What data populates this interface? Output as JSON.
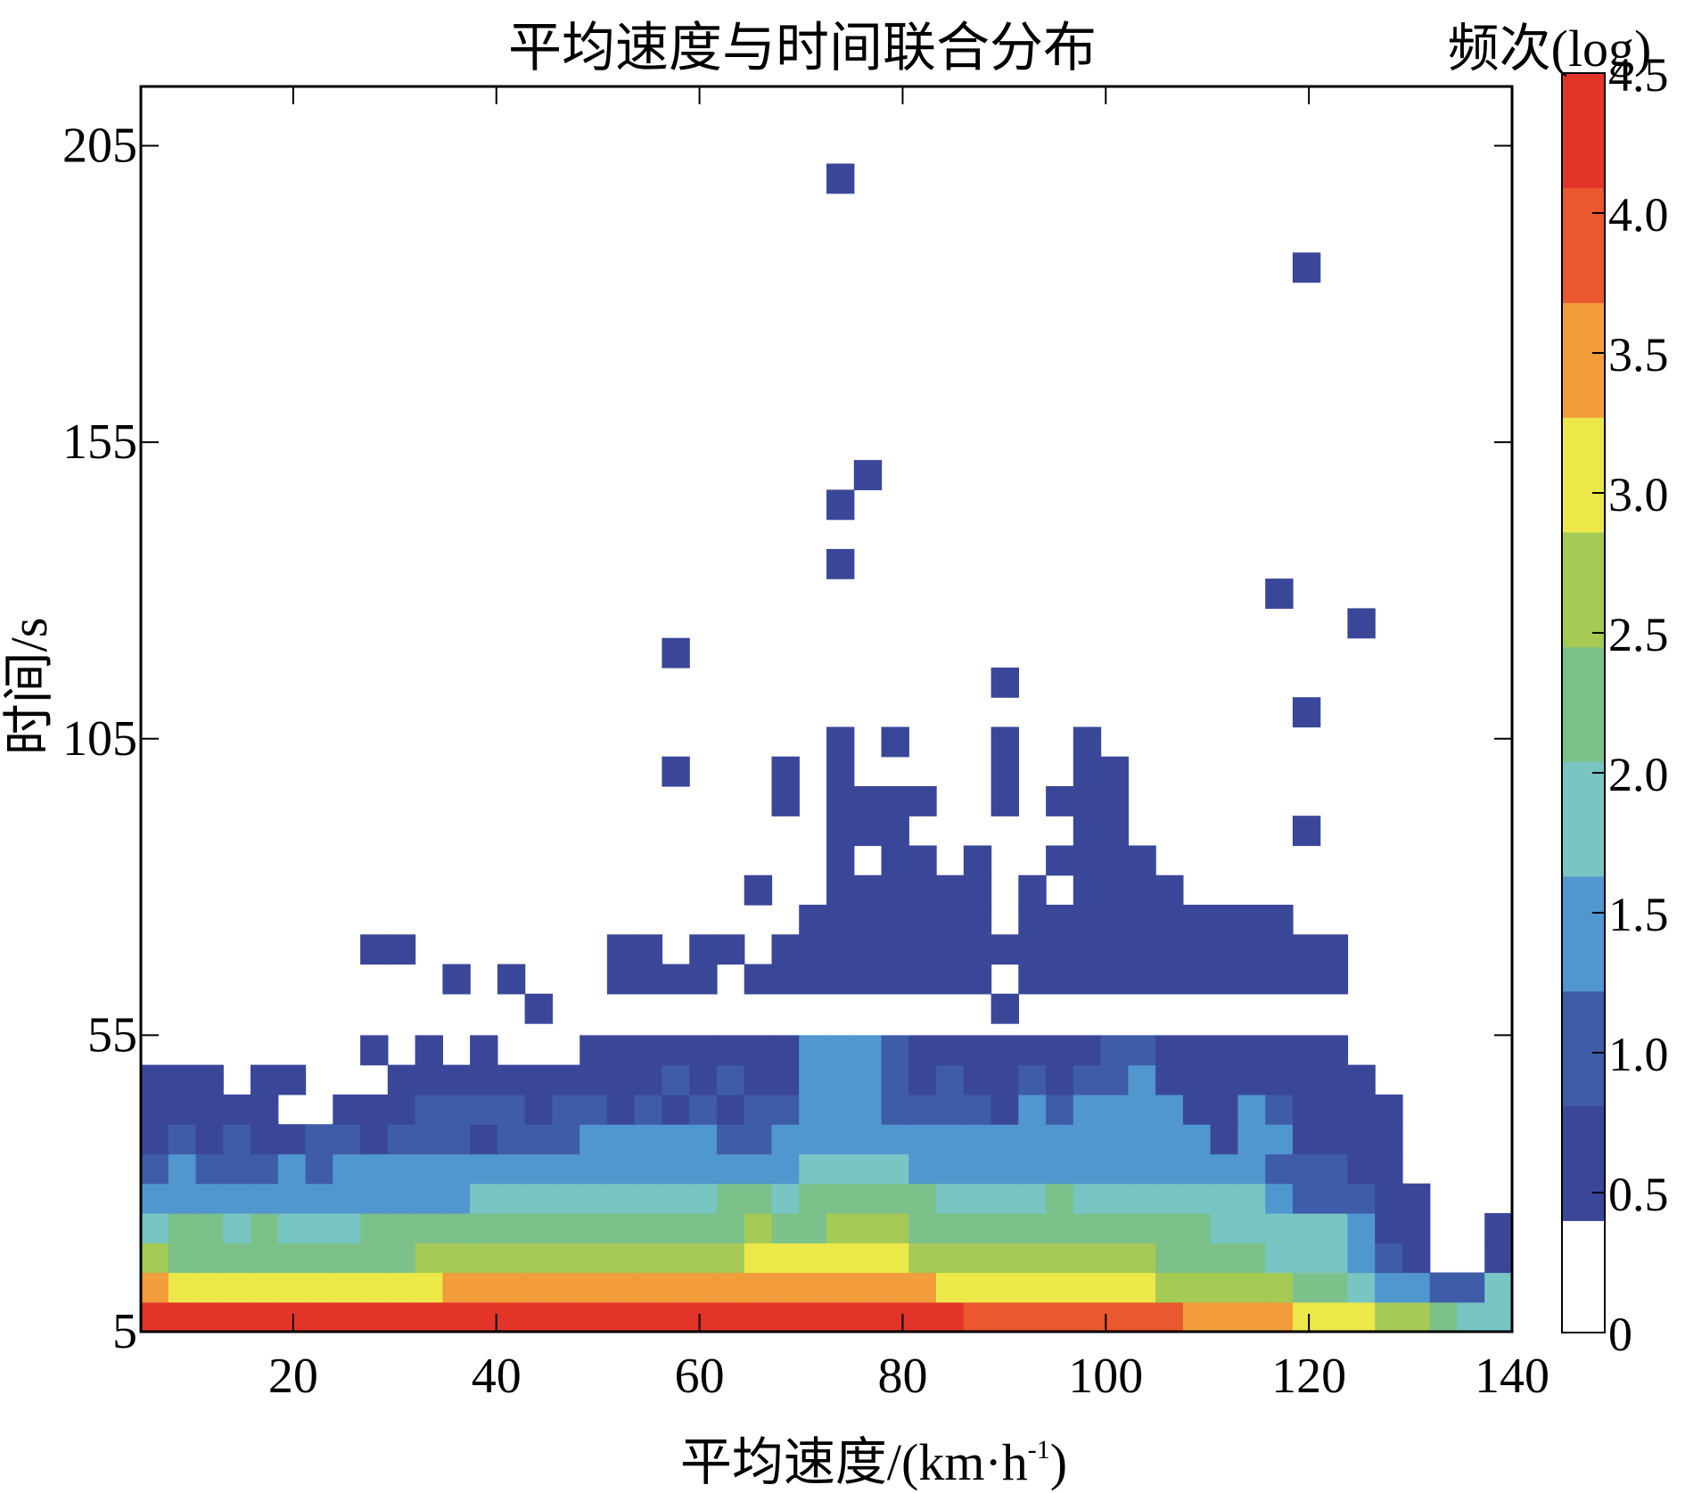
{
  "chart_data": {
    "type": "heatmap",
    "title": "平均速度与时间联合分布",
    "xlabel_main": "平均速度/(km·h",
    "xlabel_sup": "-1",
    "xlabel_close": ")",
    "ylabel": "时间/s",
    "xlim": [
      5,
      140
    ],
    "ylim": [
      5,
      215
    ],
    "x_ticks": [
      20,
      40,
      60,
      80,
      100,
      120,
      140
    ],
    "x_tick_labels": [
      "20",
      "40",
      "60",
      "80",
      "100",
      "120",
      "140"
    ],
    "y_ticks": [
      5,
      55,
      105,
      155,
      205
    ],
    "y_tick_labels": [
      "5",
      "55",
      "105",
      "155",
      "205"
    ],
    "colorbar": {
      "label": "频次(log)",
      "range": [
        0,
        4.5
      ],
      "tick_values": [
        0,
        0.5,
        1.0,
        1.5,
        2.0,
        2.5,
        3.0,
        3.5,
        4.0,
        4.5
      ],
      "tick_labels": [
        "0",
        "0.5",
        "1.0",
        "1.5",
        "2.0",
        "2.5",
        "3.0",
        "3.5",
        "4.0",
        "4.5"
      ],
      "colors": [
        "#ffffff",
        "#3a4799",
        "#3f5ca8",
        "#5097cf",
        "#78c5c4",
        "#7cc18a",
        "#a5ca56",
        "#ece84a",
        "#f29c3b",
        "#e9582e",
        "#e3342a"
      ]
    },
    "bin_width_x": 2.7,
    "bin_height_y": 5,
    "x_start": 5,
    "y_start": 5,
    "row_labels_y_bin_start": [
      5,
      10,
      15,
      20,
      25,
      30,
      35,
      40,
      45,
      50
    ],
    "rows_by_y_bin": [
      [
        "#e3342a",
        "#e3342a",
        "#e3342a",
        "#e3342a",
        "#e3342a",
        "#e3342a",
        "#e3342a",
        "#e3342a",
        "#e3342a",
        "#e3342a",
        "#e3342a",
        "#e3342a",
        "#e3342a",
        "#e3342a",
        "#e3342a",
        "#e3342a",
        "#e3342a",
        "#e3342a",
        "#e3342a",
        "#e3342a",
        "#e3342a",
        "#e3342a",
        "#e3342a",
        "#e3342a",
        "#e3342a",
        "#e3342a",
        "#e3342a",
        "#e3342a",
        "#e3342a",
        "#e3342a",
        "#e9582e",
        "#e9582e",
        "#e9582e",
        "#e9582e",
        "#e9582e",
        "#e9582e",
        "#e9582e",
        "#e9582e",
        "#f29c3b",
        "#f29c3b",
        "#f29c3b",
        "#f29c3b",
        "#ece84a",
        "#ece84a",
        "#ece84a",
        "#a5ca56",
        "#a5ca56",
        "#7cc18a",
        "#78c5c4",
        "#78c5c4"
      ],
      [
        "#f29c3b",
        "#ece84a",
        "#ece84a",
        "#ece84a",
        "#ece84a",
        "#ece84a",
        "#ece84a",
        "#ece84a",
        "#ece84a",
        "#ece84a",
        "#ece84a",
        "#f29c3b",
        "#f29c3b",
        "#f29c3b",
        "#f29c3b",
        "#f29c3b",
        "#f29c3b",
        "#f29c3b",
        "#f29c3b",
        "#f29c3b",
        "#f29c3b",
        "#f29c3b",
        "#f29c3b",
        "#f29c3b",
        "#f29c3b",
        "#f29c3b",
        "#f29c3b",
        "#f29c3b",
        "#f29c3b",
        "#ece84a",
        "#ece84a",
        "#ece84a",
        "#ece84a",
        "#ece84a",
        "#ece84a",
        "#ece84a",
        "#ece84a",
        "#a5ca56",
        "#a5ca56",
        "#a5ca56",
        "#a5ca56",
        "#a5ca56",
        "#7cc18a",
        "#7cc18a",
        "#78c5c4",
        "#5097cf",
        "#5097cf",
        "#3f5ca8",
        "#3f5ca8",
        "#78c5c4"
      ],
      [
        "#a5ca56",
        "#7cc18a",
        "#7cc18a",
        "#7cc18a",
        "#7cc18a",
        "#7cc18a",
        "#7cc18a",
        "#7cc18a",
        "#7cc18a",
        "#7cc18a",
        "#a5ca56",
        "#a5ca56",
        "#a5ca56",
        "#a5ca56",
        "#a5ca56",
        "#a5ca56",
        "#a5ca56",
        "#a5ca56",
        "#a5ca56",
        "#a5ca56",
        "#a5ca56",
        "#a5ca56",
        "#ece84a",
        "#ece84a",
        "#ece84a",
        "#ece84a",
        "#ece84a",
        "#ece84a",
        "#a5ca56",
        "#a5ca56",
        "#a5ca56",
        "#a5ca56",
        "#a5ca56",
        "#a5ca56",
        "#a5ca56",
        "#a5ca56",
        "#a5ca56",
        "#7cc18a",
        "#7cc18a",
        "#7cc18a",
        "#7cc18a",
        "#78c5c4",
        "#78c5c4",
        "#78c5c4",
        "#5097cf",
        "#3f5ca8",
        "#3a4799",
        "#ffffff",
        "#ffffff",
        "#3a4799"
      ],
      [
        "#78c5c4",
        "#7cc18a",
        "#7cc18a",
        "#78c5c4",
        "#7cc18a",
        "#78c5c4",
        "#78c5c4",
        "#78c5c4",
        "#7cc18a",
        "#7cc18a",
        "#7cc18a",
        "#7cc18a",
        "#7cc18a",
        "#7cc18a",
        "#7cc18a",
        "#7cc18a",
        "#7cc18a",
        "#7cc18a",
        "#7cc18a",
        "#7cc18a",
        "#7cc18a",
        "#7cc18a",
        "#a5ca56",
        "#7cc18a",
        "#7cc18a",
        "#a5ca56",
        "#a5ca56",
        "#a5ca56",
        "#7cc18a",
        "#7cc18a",
        "#7cc18a",
        "#7cc18a",
        "#7cc18a",
        "#7cc18a",
        "#7cc18a",
        "#7cc18a",
        "#7cc18a",
        "#7cc18a",
        "#7cc18a",
        "#78c5c4",
        "#78c5c4",
        "#78c5c4",
        "#78c5c4",
        "#78c5c4",
        "#5097cf",
        "#3a4799",
        "#3a4799",
        "#ffffff",
        "#ffffff",
        "#3a4799"
      ],
      [
        "#5097cf",
        "#5097cf",
        "#5097cf",
        "#5097cf",
        "#5097cf",
        "#5097cf",
        "#5097cf",
        "#5097cf",
        "#5097cf",
        "#5097cf",
        "#5097cf",
        "#5097cf",
        "#78c5c4",
        "#78c5c4",
        "#78c5c4",
        "#78c5c4",
        "#78c5c4",
        "#78c5c4",
        "#78c5c4",
        "#78c5c4",
        "#78c5c4",
        "#7cc18a",
        "#7cc18a",
        "#78c5c4",
        "#7cc18a",
        "#7cc18a",
        "#7cc18a",
        "#7cc18a",
        "#7cc18a",
        "#78c5c4",
        "#78c5c4",
        "#78c5c4",
        "#78c5c4",
        "#7cc18a",
        "#78c5c4",
        "#78c5c4",
        "#78c5c4",
        "#78c5c4",
        "#78c5c4",
        "#78c5c4",
        "#78c5c4",
        "#5097cf",
        "#3f5ca8",
        "#3f5ca8",
        "#3f5ca8",
        "#3a4799",
        "#3a4799",
        "#ffffff",
        "#ffffff",
        "#ffffff"
      ],
      [
        "#3f5ca8",
        "#5097cf",
        "#3f5ca8",
        "#3f5ca8",
        "#3f5ca8",
        "#5097cf",
        "#3f5ca8",
        "#5097cf",
        "#5097cf",
        "#5097cf",
        "#5097cf",
        "#5097cf",
        "#5097cf",
        "#5097cf",
        "#5097cf",
        "#5097cf",
        "#5097cf",
        "#5097cf",
        "#5097cf",
        "#5097cf",
        "#5097cf",
        "#5097cf",
        "#5097cf",
        "#5097cf",
        "#78c5c4",
        "#78c5c4",
        "#78c5c4",
        "#78c5c4",
        "#5097cf",
        "#5097cf",
        "#5097cf",
        "#5097cf",
        "#5097cf",
        "#5097cf",
        "#5097cf",
        "#5097cf",
        "#5097cf",
        "#5097cf",
        "#5097cf",
        "#5097cf",
        "#5097cf",
        "#3f5ca8",
        "#3f5ca8",
        "#3f5ca8",
        "#3a4799",
        "#3a4799",
        "#ffffff",
        "#ffffff",
        "#ffffff",
        "#ffffff"
      ],
      [
        "#3a4799",
        "#3f5ca8",
        "#3a4799",
        "#3f5ca8",
        "#3a4799",
        "#3a4799",
        "#3f5ca8",
        "#3f5ca8",
        "#3a4799",
        "#3f5ca8",
        "#3f5ca8",
        "#3f5ca8",
        "#3a4799",
        "#3f5ca8",
        "#3f5ca8",
        "#3f5ca8",
        "#5097cf",
        "#5097cf",
        "#5097cf",
        "#5097cf",
        "#5097cf",
        "#3f5ca8",
        "#3f5ca8",
        "#5097cf",
        "#5097cf",
        "#5097cf",
        "#5097cf",
        "#5097cf",
        "#5097cf",
        "#5097cf",
        "#5097cf",
        "#5097cf",
        "#5097cf",
        "#5097cf",
        "#5097cf",
        "#5097cf",
        "#5097cf",
        "#5097cf",
        "#5097cf",
        "#3a4799",
        "#5097cf",
        "#5097cf",
        "#3a4799",
        "#3a4799",
        "#3a4799",
        "#3a4799",
        "#ffffff",
        "#ffffff",
        "#ffffff",
        "#ffffff"
      ],
      [
        "#3a4799",
        "#3a4799",
        "#3a4799",
        "#3a4799",
        "#3a4799",
        "#ffffff",
        "#ffffff",
        "#3a4799",
        "#3a4799",
        "#3a4799",
        "#3f5ca8",
        "#3f5ca8",
        "#3f5ca8",
        "#3f5ca8",
        "#3a4799",
        "#3f5ca8",
        "#3f5ca8",
        "#3a4799",
        "#3f5ca8",
        "#3a4799",
        "#3f5ca8",
        "#3a4799",
        "#3f5ca8",
        "#3f5ca8",
        "#5097cf",
        "#5097cf",
        "#5097cf",
        "#3f5ca8",
        "#3f5ca8",
        "#3f5ca8",
        "#3f5ca8",
        "#3a4799",
        "#5097cf",
        "#3f5ca8",
        "#5097cf",
        "#5097cf",
        "#5097cf",
        "#5097cf",
        "#3a4799",
        "#3a4799",
        "#5097cf",
        "#3f5ca8",
        "#3a4799",
        "#3a4799",
        "#3a4799",
        "#3a4799",
        "#ffffff",
        "#ffffff",
        "#ffffff",
        "#ffffff"
      ],
      [
        "#3a4799",
        "#3a4799",
        "#3a4799",
        "#ffffff",
        "#3a4799",
        "#3a4799",
        "#ffffff",
        "#ffffff",
        "#ffffff",
        "#3a4799",
        "#3a4799",
        "#3a4799",
        "#3a4799",
        "#3a4799",
        "#3a4799",
        "#3a4799",
        "#3a4799",
        "#3a4799",
        "#3a4799",
        "#3f5ca8",
        "#3a4799",
        "#3f5ca8",
        "#3a4799",
        "#3a4799",
        "#5097cf",
        "#5097cf",
        "#5097cf",
        "#3f5ca8",
        "#3a4799",
        "#3f5ca8",
        "#3a4799",
        "#3a4799",
        "#3f5ca8",
        "#3a4799",
        "#3f5ca8",
        "#3f5ca8",
        "#5097cf",
        "#3a4799",
        "#3a4799",
        "#3a4799",
        "#3a4799",
        "#3a4799",
        "#3a4799",
        "#3a4799",
        "#3a4799",
        "#ffffff",
        "#ffffff",
        "#ffffff",
        "#ffffff",
        "#ffffff"
      ],
      [
        "#ffffff",
        "#ffffff",
        "#ffffff",
        "#ffffff",
        "#ffffff",
        "#ffffff",
        "#ffffff",
        "#ffffff",
        "#3a4799",
        "#ffffff",
        "#3a4799",
        "#ffffff",
        "#3a4799",
        "#ffffff",
        "#ffffff",
        "#ffffff",
        "#3a4799",
        "#3a4799",
        "#3a4799",
        "#3a4799",
        "#3a4799",
        "#3a4799",
        "#3a4799",
        "#3a4799",
        "#5097cf",
        "#5097cf",
        "#5097cf",
        "#3f5ca8",
        "#3a4799",
        "#3a4799",
        "#3a4799",
        "#3a4799",
        "#3a4799",
        "#3a4799",
        "#3a4799",
        "#3f5ca8",
        "#3f5ca8",
        "#3a4799",
        "#3a4799",
        "#3a4799",
        "#3a4799",
        "#3a4799",
        "#3a4799",
        "#3a4799",
        "#ffffff",
        "#ffffff",
        "#ffffff",
        "#ffffff",
        "#ffffff",
        "#ffffff"
      ]
    ],
    "isolated_bins": [
      [
        14,
        57
      ],
      [
        31,
        57
      ],
      [
        13,
        62
      ],
      [
        29,
        62
      ],
      [
        34,
        62
      ],
      [
        8,
        67
      ],
      [
        9,
        67
      ],
      [
        39,
        67
      ],
      [
        11,
        62
      ],
      [
        17,
        62
      ],
      [
        18,
        62
      ],
      [
        19,
        62
      ],
      [
        20,
        62
      ],
      [
        22,
        62
      ],
      [
        23,
        62
      ],
      [
        24,
        62
      ],
      [
        25,
        62
      ],
      [
        26,
        62
      ],
      [
        27,
        62
      ],
      [
        28,
        62
      ],
      [
        30,
        62
      ],
      [
        32,
        62
      ],
      [
        33,
        62
      ],
      [
        35,
        62
      ],
      [
        36,
        62
      ],
      [
        37,
        62
      ],
      [
        38,
        62
      ],
      [
        39,
        62
      ],
      [
        40,
        62
      ],
      [
        41,
        62
      ],
      [
        42,
        62
      ],
      [
        43,
        62
      ],
      [
        17,
        67
      ],
      [
        18,
        67
      ],
      [
        20,
        67
      ],
      [
        21,
        67
      ],
      [
        23,
        67
      ],
      [
        24,
        67
      ],
      [
        25,
        67
      ],
      [
        26,
        67
      ],
      [
        27,
        67
      ],
      [
        28,
        67
      ],
      [
        29,
        67
      ],
      [
        30,
        67
      ],
      [
        31,
        67
      ],
      [
        32,
        67
      ],
      [
        33,
        67
      ],
      [
        34,
        67
      ],
      [
        35,
        67
      ],
      [
        36,
        67
      ],
      [
        37,
        67
      ],
      [
        38,
        67
      ],
      [
        40,
        67
      ],
      [
        41,
        67
      ],
      [
        42,
        67
      ],
      [
        43,
        67
      ],
      [
        24,
        72
      ],
      [
        25,
        72
      ],
      [
        26,
        72
      ],
      [
        27,
        72
      ],
      [
        28,
        72
      ],
      [
        29,
        72
      ],
      [
        30,
        72
      ],
      [
        32,
        72
      ],
      [
        33,
        72
      ],
      [
        34,
        72
      ],
      [
        35,
        72
      ],
      [
        36,
        72
      ],
      [
        37,
        72
      ],
      [
        38,
        72
      ],
      [
        39,
        72
      ],
      [
        40,
        72
      ],
      [
        41,
        72
      ],
      [
        22,
        77
      ],
      [
        25,
        77
      ],
      [
        26,
        77
      ],
      [
        27,
        77
      ],
      [
        28,
        77
      ],
      [
        29,
        77
      ],
      [
        30,
        77
      ],
      [
        32,
        77
      ],
      [
        34,
        77
      ],
      [
        35,
        77
      ],
      [
        36,
        77
      ],
      [
        37,
        77
      ],
      [
        25,
        82
      ],
      [
        27,
        82
      ],
      [
        28,
        82
      ],
      [
        30,
        82
      ],
      [
        33,
        82
      ],
      [
        34,
        82
      ],
      [
        35,
        82
      ],
      [
        36,
        82
      ],
      [
        25,
        87
      ],
      [
        26,
        87
      ],
      [
        27,
        87
      ],
      [
        34,
        87
      ],
      [
        35,
        87
      ],
      [
        42,
        87
      ],
      [
        23,
        92
      ],
      [
        25,
        92
      ],
      [
        26,
        92
      ],
      [
        27,
        92
      ],
      [
        28,
        92
      ],
      [
        31,
        92
      ],
      [
        33,
        92
      ],
      [
        34,
        92
      ],
      [
        35,
        92
      ],
      [
        19,
        97
      ],
      [
        23,
        97
      ],
      [
        25,
        97
      ],
      [
        31,
        97
      ],
      [
        34,
        97
      ],
      [
        35,
        97
      ],
      [
        25,
        102
      ],
      [
        27,
        102
      ],
      [
        31,
        102
      ],
      [
        34,
        102
      ],
      [
        42,
        107
      ],
      [
        31,
        112
      ],
      [
        19,
        117
      ],
      [
        44,
        122
      ],
      [
        41,
        127
      ],
      [
        25,
        132
      ],
      [
        25,
        142
      ],
      [
        26,
        147
      ],
      [
        42,
        182
      ],
      [
        25,
        197
      ]
    ]
  }
}
